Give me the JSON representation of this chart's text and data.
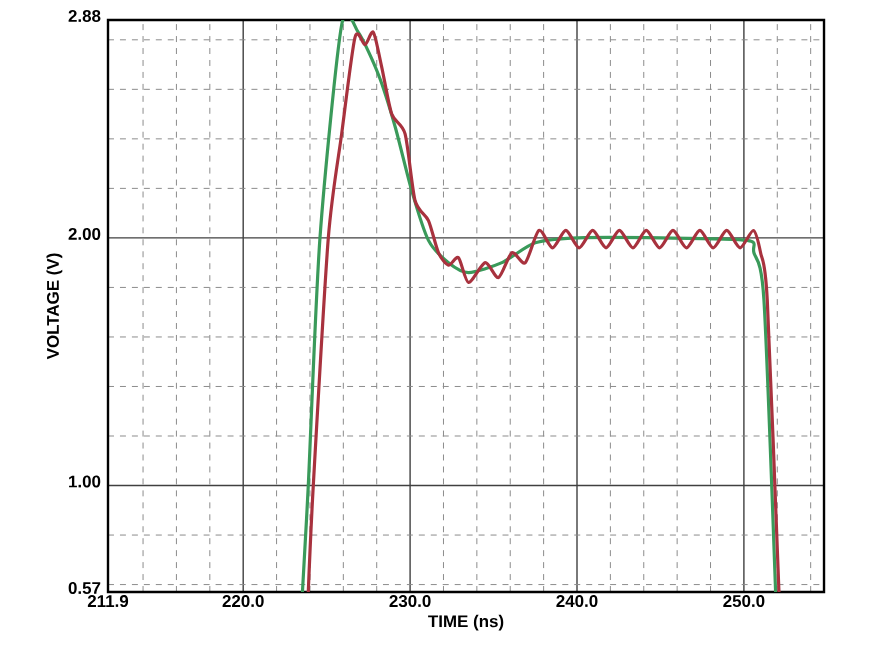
{
  "chart_data": {
    "type": "line",
    "xlabel": "TIME (ns)",
    "ylabel": "VOLTAGE (V)",
    "xlim": [
      211.9,
      254.8
    ],
    "ylim": [
      0.57,
      2.88
    ],
    "xticks": [
      211.9,
      {
        "value": 214,
        "label": null
      },
      {
        "value": 216,
        "label": null
      },
      {
        "value": 218,
        "label": null
      },
      {
        "value": 220,
        "label": "220.0"
      },
      {
        "value": 222,
        "label": null
      },
      {
        "value": 224,
        "label": null
      },
      {
        "value": 226,
        "label": null
      },
      {
        "value": 228,
        "label": null
      },
      {
        "value": 230,
        "label": "230.0"
      },
      {
        "value": 232,
        "label": null
      },
      {
        "value": 234,
        "label": null
      },
      {
        "value": 236,
        "label": null
      },
      {
        "value": 238,
        "label": null
      },
      {
        "value": 240,
        "label": "240.0"
      },
      {
        "value": 242,
        "label": null
      },
      {
        "value": 244,
        "label": null
      },
      {
        "value": 246,
        "label": null
      },
      {
        "value": 248,
        "label": null
      },
      {
        "value": 250,
        "label": "250.0"
      },
      {
        "value": 252,
        "label": null
      },
      {
        "value": 254,
        "label": null
      }
    ],
    "yticks": [
      0.57,
      {
        "value": 0.6,
        "label": null
      },
      {
        "value": 0.8,
        "label": null
      },
      {
        "value": 1,
        "label": "1.00"
      },
      {
        "value": 1.2,
        "label": null
      },
      {
        "value": 1.4,
        "label": null
      },
      {
        "value": 1.6,
        "label": null
      },
      {
        "value": 1.8,
        "label": null
      },
      {
        "value": 2,
        "label": "2.00"
      },
      {
        "value": 2.2,
        "label": null
      },
      {
        "value": 2.4,
        "label": null
      },
      {
        "value": 2.6,
        "label": null
      },
      {
        "value": 2.8,
        "label": null
      },
      2.88
    ],
    "grid": true,
    "marker": "none",
    "line_style": "solid",
    "series": [
      {
        "color": "#3a9a5a",
        "x": [
          223.55,
          223.9,
          224.6,
          225.9,
          226.9,
          228.1,
          229.1,
          230.1,
          231.1,
          232.3,
          233.5,
          235.5,
          237.5,
          240.1,
          245,
          250.2,
          250.6,
          251.2,
          251.9
        ],
        "values": [
          0.57,
          1.0,
          2.0,
          2.86,
          2.83,
          2.66,
          2.45,
          2.19,
          1.99,
          1.9,
          1.86,
          1.9,
          1.98,
          2.0,
          2.0,
          1.99,
          1.94,
          1.75,
          0.57
        ]
      },
      {
        "color": "#a8323e",
        "x": [
          223.9,
          224.2,
          225.1,
          225.9,
          226.7,
          227.3,
          227.8,
          228.3,
          228.9,
          229.7,
          230.3,
          231.1,
          231.7,
          232.3,
          232.9,
          233.5,
          234.5,
          235.3,
          236.1,
          236.9,
          237.72,
          238.53,
          239.33,
          240.13,
          240.94,
          241.74,
          242.54,
          243.35,
          244.15,
          244.95,
          245.75,
          246.56,
          247.36,
          248.16,
          248.97,
          249.77,
          250.57,
          251.0,
          251.4,
          252.1
        ],
        "values": [
          0.57,
          1.0,
          2.0,
          2.42,
          2.81,
          2.78,
          2.83,
          2.69,
          2.5,
          2.42,
          2.15,
          2.07,
          1.94,
          1.89,
          1.92,
          1.82,
          1.9,
          1.84,
          1.94,
          1.9,
          2.03,
          1.96,
          2.03,
          1.96,
          2.03,
          1.96,
          2.03,
          1.96,
          2.03,
          1.96,
          2.03,
          1.96,
          2.03,
          1.96,
          2.03,
          1.96,
          2.03,
          1.94,
          1.75,
          0.57
        ]
      }
    ]
  }
}
